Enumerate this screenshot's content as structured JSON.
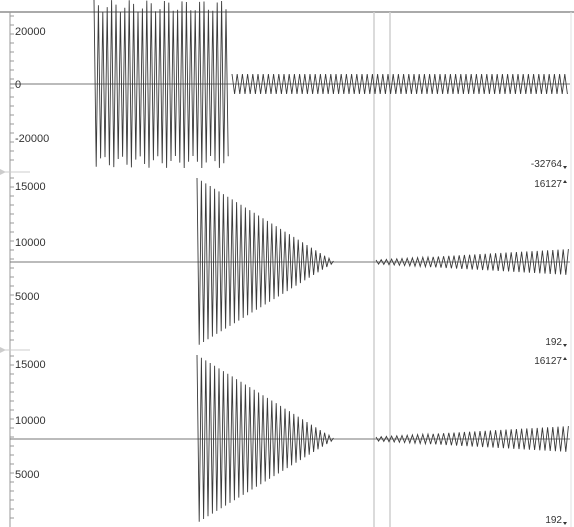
{
  "colors": {
    "waveform": "#3a3a3a",
    "baseline": "#777777",
    "axis": "#999999",
    "cursor": "#c8c8c8",
    "background": "#ffffff"
  },
  "tracks": [
    {
      "id": "track-1",
      "axis_labels": [
        "20000",
        "0",
        "-20000"
      ],
      "right_labels": [
        "-32764"
      ]
    },
    {
      "id": "track-2",
      "axis_labels": [
        "15000",
        "10000",
        "5000"
      ],
      "right_labels": [
        "16127",
        "192"
      ]
    },
    {
      "id": "track-3",
      "axis_labels": [
        "15000",
        "10000",
        "5000"
      ],
      "right_labels": [
        "16127",
        "192"
      ]
    }
  ]
}
